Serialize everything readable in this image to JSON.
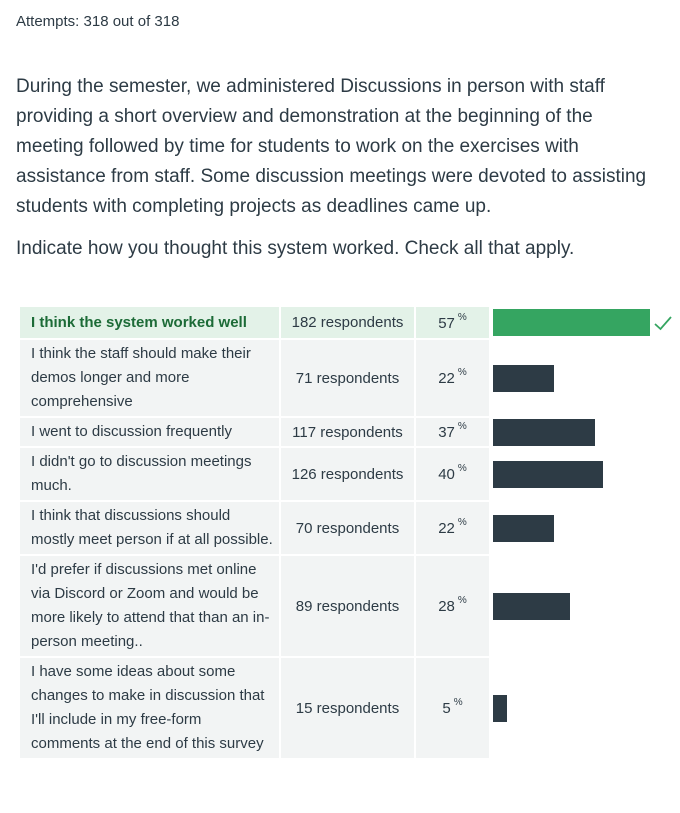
{
  "attempts_label": "Attempts: 318 out of 318",
  "question": {
    "paragraph1": "During the semester, we administered Discussions in person with staff providing a short overview and demonstration at the beginning of the meeting followed by time for students to work on the exercises with assistance from staff. Some discussion meetings were devoted to assisting students with completing projects as deadlines came up.",
    "paragraph2": "Indicate how you thought this system worked. Check all that apply."
  },
  "colors": {
    "correct_bar": "#35a561",
    "bar": "#2d3b45",
    "correct_row_bg": "#e3f2e8",
    "row_bg": "#f2f4f4"
  },
  "answers": [
    {
      "text": "I think the system worked well",
      "respondents": "182 respondents",
      "percent": "57",
      "value": 57,
      "correct": true
    },
    {
      "text": "I think the staff should make their demos longer and more comprehensive",
      "respondents": "71 respondents",
      "percent": "22",
      "value": 22,
      "correct": false
    },
    {
      "text": "I went to discussion frequently",
      "respondents": "117 respondents",
      "percent": "37",
      "value": 37,
      "correct": false
    },
    {
      "text": "I didn't go to discussion meetings much.",
      "respondents": "126 respondents",
      "percent": "40",
      "value": 40,
      "correct": false
    },
    {
      "text": "I think that discussions should mostly meet person if at all possible.",
      "respondents": "70 respondents",
      "percent": "22",
      "value": 22,
      "correct": false
    },
    {
      "text": "I'd prefer if discussions met online via Discord or Zoom and would be more likely to attend that than an in-person meeting..",
      "respondents": "89 respondents",
      "percent": "28",
      "value": 28,
      "correct": false
    },
    {
      "text": "I have some ideas about some changes to make in discussion that I'll include in my free-form comments at the end of this survey",
      "respondents": "15 respondents",
      "percent": "5",
      "value": 5,
      "correct": false
    }
  ],
  "percent_sign": "%"
}
